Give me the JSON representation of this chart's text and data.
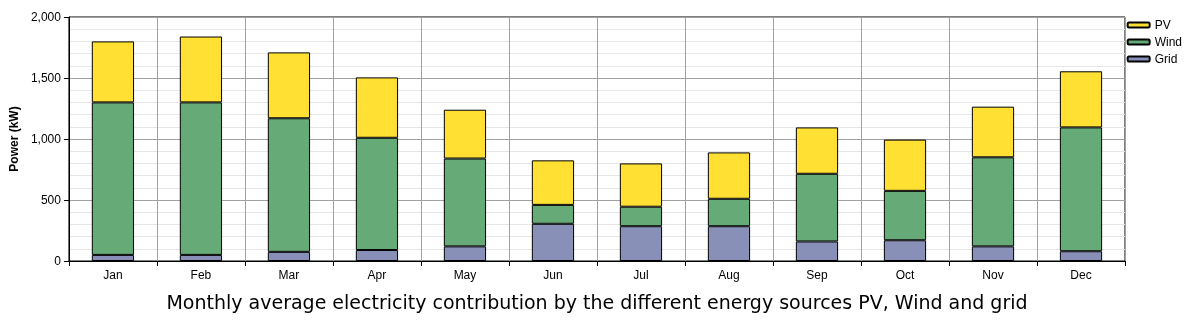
{
  "chart_data": {
    "type": "bar",
    "stacked": true,
    "title": "Monthly average electricity contribution by the different energy sources PV, Wind and grid",
    "ylabel": "Power (kW)",
    "categories": [
      "Jan",
      "Feb",
      "Mar",
      "Apr",
      "May",
      "Jun",
      "Jul",
      "Aug",
      "Sep",
      "Oct",
      "Nov",
      "Dec"
    ],
    "series": [
      {
        "name": "Grid",
        "color": "#8890b8",
        "values": [
          50,
          50,
          75,
          90,
          120,
          305,
          285,
          285,
          160,
          170,
          120,
          80
        ]
      },
      {
        "name": "Wind",
        "color": "#66aa77",
        "values": [
          1250,
          1250,
          1095,
          920,
          720,
          155,
          160,
          225,
          555,
          405,
          730,
          1015
        ]
      },
      {
        "name": "PV",
        "color": "#ffe033",
        "values": [
          500,
          540,
          540,
          495,
          400,
          365,
          355,
          380,
          380,
          420,
          415,
          460
        ]
      }
    ],
    "ylim": [
      0,
      2000
    ],
    "yticks": [
      0,
      500,
      {
        "value": 1000,
        "label": "1,000"
      },
      {
        "value": 1500,
        "label": "1,500"
      },
      {
        "value": 2000,
        "label": "2,000"
      }
    ],
    "grid": true,
    "legend": "top right"
  }
}
